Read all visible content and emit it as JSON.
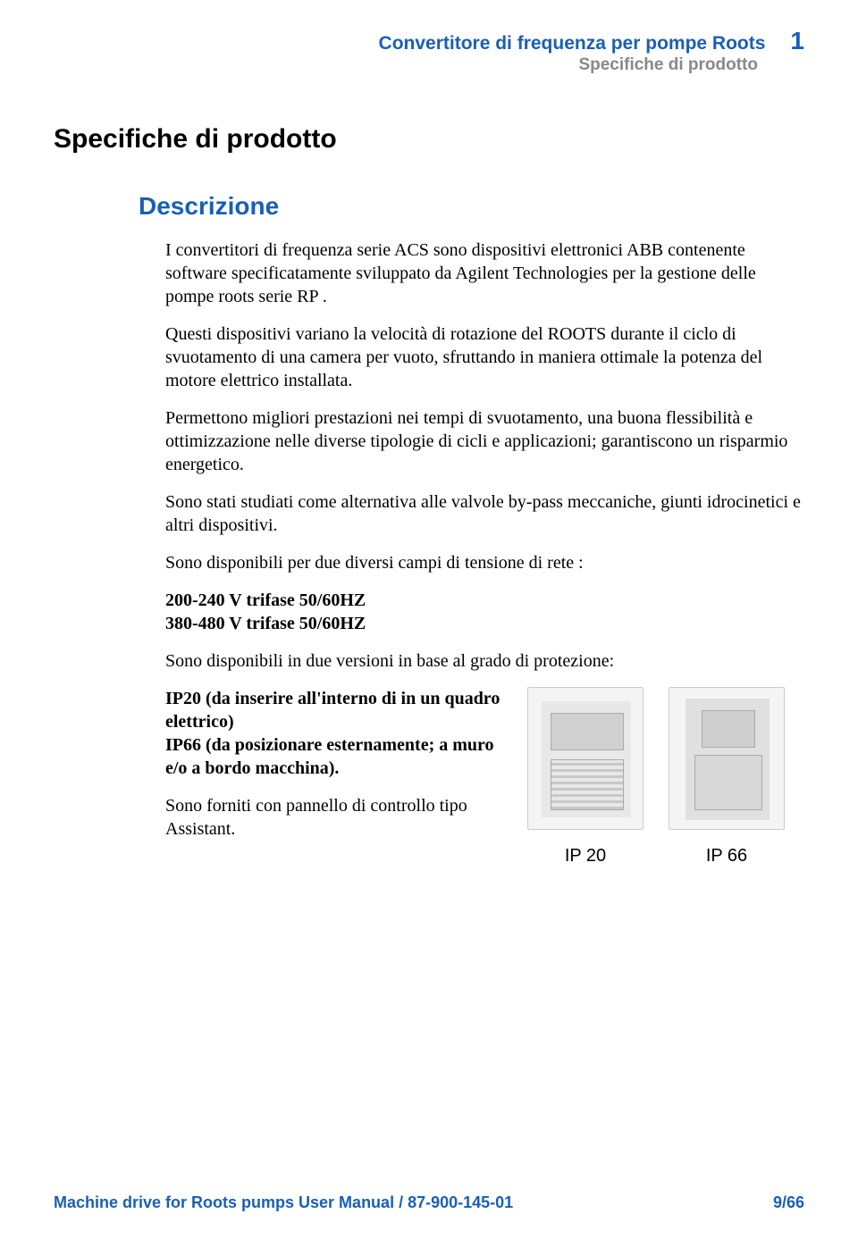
{
  "colors": {
    "accent": "#1a5fb4",
    "muted": "#888888",
    "text": "#000000",
    "bg": "#ffffff"
  },
  "typography": {
    "body_family": "Georgia serif",
    "heading_family": "Arial sans-serif",
    "h1_size_pt": 22,
    "h2_size_pt": 20,
    "body_size_pt": 15
  },
  "header": {
    "title": "Convertitore di frequenza per pompe Roots",
    "chapter_number": "1",
    "subtitle": "Specifiche di prodotto"
  },
  "h1": "Specifiche di prodotto",
  "h2": "Descrizione",
  "paragraphs": {
    "p1": "I convertitori di frequenza serie ACS sono dispositivi elettronici ABB contenente software specificatamente sviluppato da Agilent Technologies per la gestione delle pompe roots serie RP .",
    "p2": "Questi dispositivi variano la velocità di rotazione del ROOTS durante il ciclo di svuotamento di una camera per vuoto, sfruttando  in maniera ottimale la potenza del motore elettrico installata.",
    "p3": "Permettono migliori prestazioni nei tempi di svuotamento, una buona flessibilità e ottimizzazione nelle diverse tipologie di cicli e applicazioni; garantiscono un risparmio energetico.",
    "p4": "Sono stati studiati come alternativa alle valvole by-pass meccaniche, giunti idrocinetici e altri dispositivi.",
    "p5": "Sono disponibili per due diversi campi di tensione di rete :",
    "volt1": "200-240 V  trifase 50/60HZ",
    "volt2": "380-480 V trifase 50/60HZ",
    "p6": "Sono disponibili in due versioni in base al grado di protezione:",
    "ip20": "IP20 (da inserire all'interno di in un quadro elettrico)",
    "ip66": "IP66 (da posizionare esternamente; a muro e/o a bordo macchina).",
    "p7": "Sono forniti con pannello di controllo tipo Assistant."
  },
  "images": {
    "left_caption": "IP 20",
    "right_caption": "IP 66"
  },
  "footer": {
    "left": "Machine drive for Roots pumps User Manual / 87-900-145-01",
    "right": "9/66"
  }
}
